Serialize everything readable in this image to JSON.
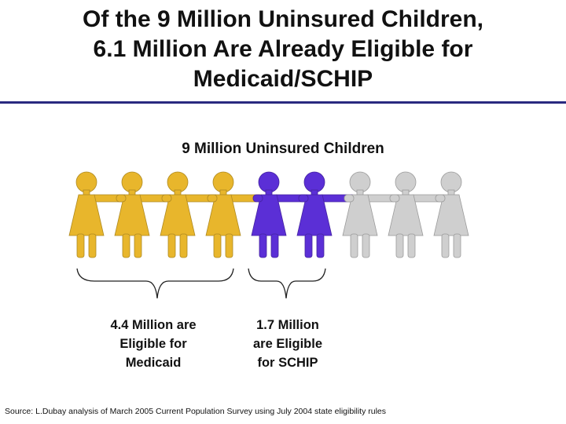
{
  "title_lines": [
    "Of the 9 Million Uninsured Children,",
    "6.1 Million Are Already Eligible for",
    "Medicaid/SCHIP"
  ],
  "subtitle": "9 Million Uninsured Children",
  "figures": {
    "groups": [
      {
        "count": 4,
        "color": "#e8b62c"
      },
      {
        "count": 2,
        "color": "#5b2fd6"
      },
      {
        "count": 3,
        "color": "#cfcfcf"
      }
    ]
  },
  "labels": {
    "medicaid_lines": [
      "4.4 Million are",
      "Eligible for",
      "Medicaid"
    ],
    "schip_lines": [
      "1.7 Million",
      "are Eligible",
      "for SCHIP"
    ]
  },
  "source": "Source:  L.Dubay analysis of March 2005 Current Population Survey using July 2004 state eligibility rules"
}
